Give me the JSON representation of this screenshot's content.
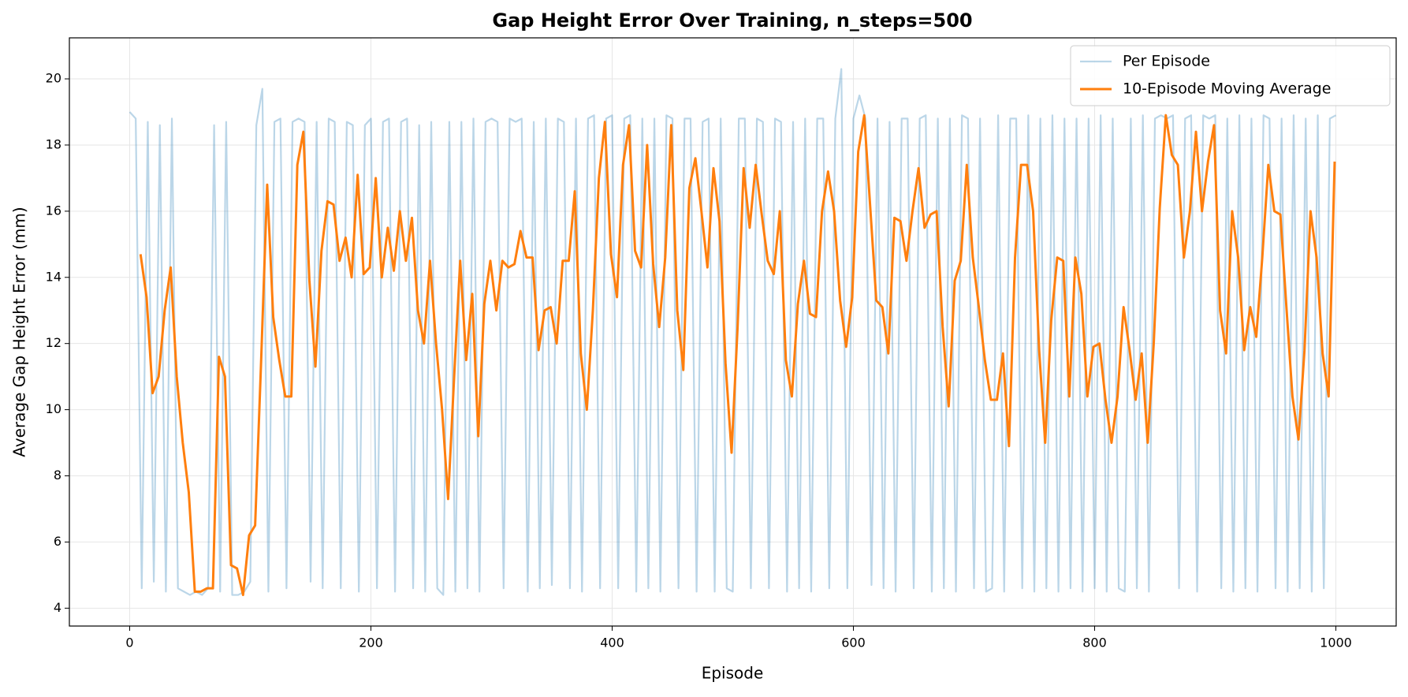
{
  "chart_data": {
    "type": "line",
    "title": "Gap Height Error Over Training, n_steps=500",
    "x_label": "Episode",
    "y_label": "Average Gap Height Error (mm)",
    "xlim": [
      -50,
      1050
    ],
    "ylim": [
      3.46,
      21.24
    ],
    "xticks": [
      0,
      200,
      400,
      600,
      800,
      1000
    ],
    "yticks": [
      4,
      6,
      8,
      10,
      12,
      14,
      16,
      18,
      20
    ],
    "grid": true,
    "legend": "upper right",
    "series": [
      {
        "name": "Per Episode",
        "color": "#1f77b4",
        "alpha": 0.3,
        "x": [
          0,
          5,
          10,
          15,
          20,
          25,
          30,
          35,
          40,
          45,
          50,
          55,
          60,
          65,
          70,
          75,
          80,
          85,
          90,
          95,
          100,
          105,
          110,
          115,
          120,
          125,
          130,
          135,
          140,
          145,
          150,
          155,
          160,
          165,
          170,
          175,
          180,
          185,
          190,
          195,
          200,
          205,
          210,
          215,
          220,
          225,
          230,
          235,
          240,
          245,
          250,
          255,
          260,
          265,
          270,
          275,
          280,
          285,
          290,
          295,
          300,
          305,
          310,
          315,
          320,
          325,
          330,
          335,
          340,
          345,
          350,
          355,
          360,
          365,
          370,
          375,
          380,
          385,
          390,
          395,
          400,
          405,
          410,
          415,
          420,
          425,
          430,
          435,
          440,
          445,
          450,
          455,
          460,
          465,
          470,
          475,
          480,
          485,
          490,
          495,
          500,
          505,
          510,
          515,
          520,
          525,
          530,
          535,
          540,
          545,
          550,
          555,
          560,
          565,
          570,
          575,
          580,
          585,
          590,
          595,
          600,
          605,
          610,
          615,
          620,
          625,
          630,
          635,
          640,
          645,
          650,
          655,
          660,
          665,
          670,
          675,
          680,
          685,
          690,
          695,
          700,
          705,
          710,
          715,
          720,
          725,
          730,
          735,
          740,
          745,
          750,
          755,
          760,
          765,
          770,
          775,
          780,
          785,
          790,
          795,
          800,
          805,
          810,
          815,
          820,
          825,
          830,
          835,
          840,
          845,
          850,
          855,
          860,
          865,
          870,
          875,
          880,
          885,
          890,
          895,
          900,
          905,
          910,
          915,
          920,
          925,
          930,
          935,
          940,
          945,
          950,
          955,
          960,
          965,
          970,
          975,
          980,
          985,
          990,
          995,
          1000
        ],
        "values": [
          19,
          18.8,
          4.6,
          18.7,
          4.8,
          18.6,
          4.5,
          18.8,
          4.6,
          4.5,
          4.4,
          4.5,
          4.4,
          4.6,
          18.6,
          4.5,
          18.7,
          4.4,
          4.4,
          4.5,
          4.8,
          18.6,
          19.7,
          4.5,
          18.7,
          18.8,
          4.6,
          18.7,
          18.8,
          18.7,
          4.8,
          18.7,
          4.6,
          18.8,
          18.7,
          4.6,
          18.7,
          18.6,
          4.5,
          18.6,
          18.8,
          4.6,
          18.7,
          18.8,
          4.5,
          18.7,
          18.8,
          4.6,
          18.6,
          4.5,
          18.7,
          4.6,
          4.4,
          18.7,
          4.5,
          18.7,
          4.6,
          18.8,
          4.5,
          18.7,
          18.8,
          18.7,
          4.6,
          18.8,
          18.7,
          18.8,
          4.5,
          18.7,
          4.6,
          18.8,
          4.7,
          18.8,
          18.7,
          4.6,
          18.8,
          4.5,
          18.8,
          18.9,
          4.6,
          18.8,
          18.9,
          4.6,
          18.8,
          18.9,
          4.5,
          18.8,
          4.6,
          18.8,
          4.5,
          18.9,
          18.8,
          4.6,
          18.8,
          18.8,
          4.5,
          18.7,
          18.8,
          4.5,
          18.8,
          4.6,
          4.5,
          18.8,
          18.8,
          4.6,
          18.8,
          18.7,
          4.6,
          18.8,
          18.7,
          4.5,
          18.7,
          4.6,
          18.8,
          4.5,
          18.8,
          18.8,
          4.6,
          18.8,
          20.3,
          4.6,
          18.8,
          19.5,
          18.8,
          4.7,
          18.8,
          4.6,
          18.7,
          4.5,
          18.8,
          18.8,
          4.6,
          18.8,
          18.9,
          4.5,
          18.8,
          4.6,
          18.8,
          4.5,
          18.9,
          18.8,
          4.6,
          18.8,
          4.5,
          4.6,
          18.9,
          4.5,
          18.8,
          18.8,
          4.6,
          18.9,
          4.5,
          18.8,
          4.6,
          18.9,
          4.5,
          18.8,
          4.6,
          18.8,
          4.5,
          18.8,
          4.6,
          18.9,
          4.5,
          18.8,
          4.6,
          4.5,
          18.8,
          4.6,
          18.9,
          4.5,
          18.8,
          18.9,
          18.8,
          18.9,
          4.6,
          18.8,
          18.9,
          4.5,
          18.9,
          18.8,
          18.9,
          4.6,
          18.8,
          4.5,
          18.9,
          4.6,
          18.8,
          4.5,
          18.9,
          18.8,
          4.6,
          18.8,
          4.5,
          18.9,
          4.6,
          18.8,
          4.5,
          18.9,
          4.6,
          18.8,
          18.9
        ]
      },
      {
        "name": "10-Episode Moving Average",
        "color": "#ff7f0e",
        "alpha": 1,
        "x": [
          9,
          14,
          19,
          24,
          29,
          34,
          39,
          44,
          49,
          54,
          59,
          64,
          69,
          74,
          79,
          84,
          89,
          94,
          99,
          104,
          109,
          114,
          119,
          124,
          129,
          134,
          139,
          144,
          149,
          154,
          159,
          164,
          169,
          174,
          179,
          184,
          189,
          194,
          199,
          204,
          209,
          214,
          219,
          224,
          229,
          234,
          239,
          244,
          249,
          254,
          259,
          264,
          269,
          274,
          279,
          284,
          289,
          294,
          299,
          304,
          309,
          314,
          319,
          324,
          329,
          334,
          339,
          344,
          349,
          354,
          359,
          364,
          369,
          374,
          379,
          384,
          389,
          394,
          399,
          404,
          409,
          414,
          419,
          424,
          429,
          434,
          439,
          444,
          449,
          454,
          459,
          464,
          469,
          474,
          479,
          484,
          489,
          494,
          499,
          504,
          509,
          514,
          519,
          524,
          529,
          534,
          539,
          544,
          549,
          554,
          559,
          564,
          569,
          574,
          579,
          584,
          589,
          594,
          599,
          604,
          609,
          614,
          619,
          624,
          629,
          634,
          639,
          644,
          649,
          654,
          659,
          664,
          669,
          674,
          679,
          684,
          689,
          694,
          699,
          704,
          709,
          714,
          719,
          724,
          729,
          734,
          739,
          744,
          749,
          754,
          759,
          764,
          769,
          774,
          779,
          784,
          789,
          794,
          799,
          804,
          809,
          814,
          819,
          824,
          829,
          834,
          839,
          844,
          849,
          854,
          859,
          864,
          869,
          874,
          879,
          884,
          889,
          894,
          899,
          904,
          909,
          914,
          919,
          924,
          929,
          934,
          939,
          944,
          949,
          954,
          959,
          964,
          969,
          974,
          979,
          984,
          989,
          994,
          999
        ],
        "values": [
          14.7,
          13.4,
          10.5,
          11,
          13,
          14.3,
          11,
          9,
          7.5,
          4.5,
          4.5,
          4.6,
          4.6,
          11.6,
          11,
          5.3,
          5.2,
          4.4,
          6.2,
          6.5,
          11.5,
          16.8,
          12.8,
          11.5,
          10.4,
          10.4,
          17.4,
          18.4,
          13.9,
          11.3,
          14.8,
          16.3,
          16.2,
          14.5,
          15.2,
          14,
          17.1,
          14.1,
          14.3,
          17,
          14,
          15.5,
          14.2,
          16,
          14.5,
          15.8,
          13,
          12,
          14.5,
          12,
          10,
          7.3,
          11,
          14.5,
          11.5,
          13.5,
          9.2,
          13.2,
          14.5,
          13,
          14.5,
          14.3,
          14.4,
          15.4,
          14.6,
          14.6,
          11.8,
          13,
          13.1,
          12,
          14.5,
          14.5,
          16.6,
          11.7,
          10,
          13,
          17,
          18.7,
          14.7,
          13.4,
          17.4,
          18.6,
          14.8,
          14.3,
          18,
          14.4,
          12.5,
          14.6,
          18.6,
          13,
          11.2,
          16.7,
          17.6,
          16,
          14.3,
          17.3,
          15.7,
          11.4,
          8.7,
          12.5,
          17.3,
          15.5,
          17.4,
          15.9,
          14.5,
          14.1,
          16,
          11.5,
          10.4,
          13.2,
          14.5,
          12.9,
          12.8,
          16,
          17.2,
          16,
          13.3,
          11.9,
          13.4,
          17.8,
          18.9,
          16.1,
          13.3,
          13.1,
          11.7,
          15.8,
          15.7,
          14.5,
          16,
          17.3,
          15.5,
          15.9,
          16,
          12.5,
          10.1,
          13.9,
          14.5,
          17.4,
          14.6,
          13.1,
          11.5,
          10.3,
          10.3,
          11.7,
          8.9,
          14.6,
          17.4,
          17.4,
          16,
          11.8,
          9,
          12.7,
          14.6,
          14.5,
          10.4,
          14.6,
          13.5,
          10.4,
          11.9,
          12,
          10.3,
          9,
          10.4,
          13.1,
          11.8,
          10.3,
          11.7,
          9,
          12,
          16.1,
          18.9,
          17.7,
          17.4,
          14.6,
          16,
          18.4,
          16,
          17.5,
          18.6,
          13,
          11.7,
          16,
          14.6,
          11.8,
          13.1,
          12.2,
          14.6,
          17.4,
          16,
          15.9,
          13.1,
          10.4,
          9.1,
          11.8,
          16,
          14.6,
          11.7,
          10.4,
          17.5
        ]
      }
    ]
  }
}
